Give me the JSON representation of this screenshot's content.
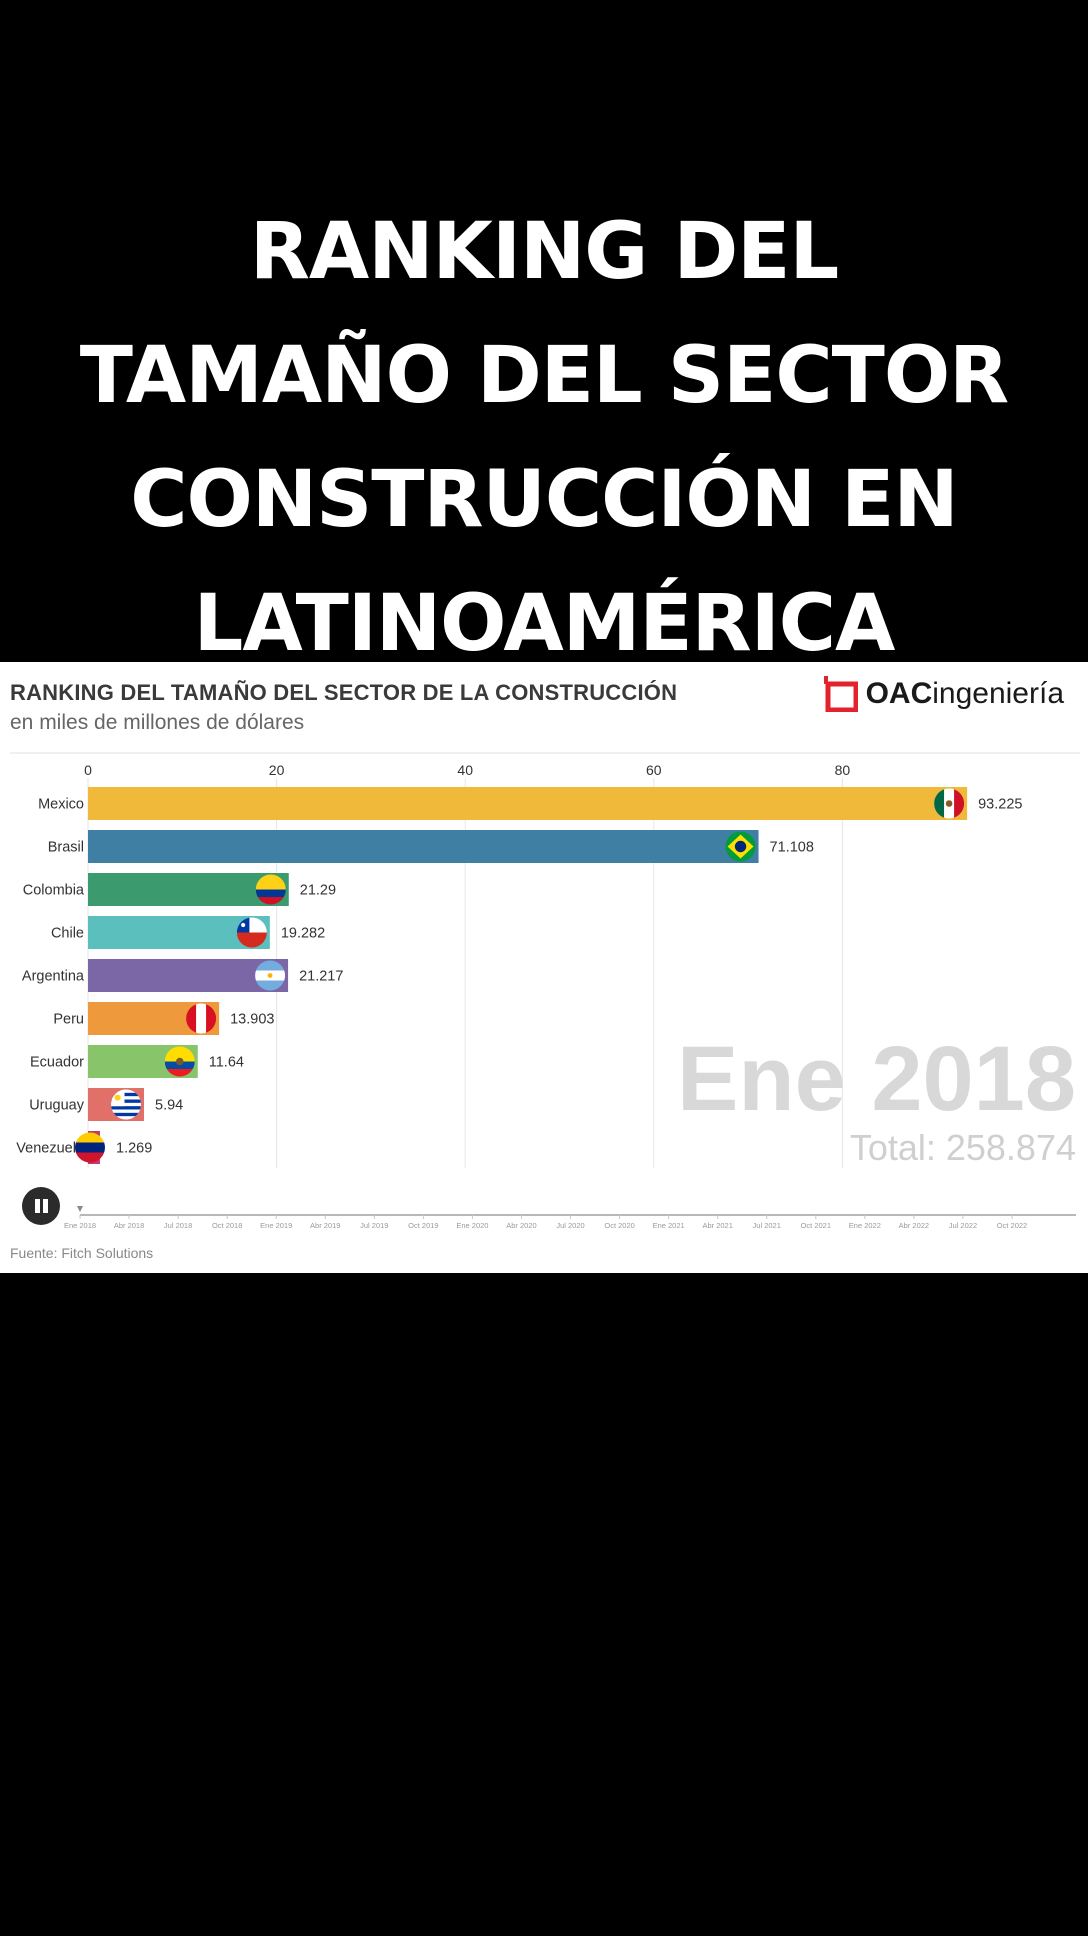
{
  "headline": {
    "lines": [
      "RANKING DEL",
      "TAMAÑO DEL SECTOR",
      "CONSTRUCCIÓN EN",
      "LATINOAMÉRICA"
    ]
  },
  "brand": {
    "name_bold": "OAC",
    "name_rest": "ingeniería",
    "color": "#e3222d"
  },
  "chart_data": {
    "type": "bar",
    "title": "RANKING DEL TAMAÑO DEL SECTOR DE LA CONSTRUCCIÓN",
    "subtitle": "en miles de millones de dólares",
    "x_ticks": [
      "0",
      "20",
      "40",
      "60",
      "80"
    ],
    "xlim": [
      0,
      100
    ],
    "grid": true,
    "categories": [
      "Mexico",
      "Brasil",
      "Colombia",
      "Chile",
      "Argentina",
      "Peru",
      "Ecuador",
      "Uruguay",
      "Venezuela"
    ],
    "values": [
      93.225,
      71.108,
      21.29,
      19.282,
      21.217,
      13.903,
      11.64,
      5.94,
      1.269
    ],
    "value_labels": [
      "93.225",
      "71.108",
      "21.29",
      "19.282",
      "21.217",
      "13.903",
      "11.64",
      "5.94",
      "1.269"
    ],
    "colors": [
      "#f0b93a",
      "#3f7fa3",
      "#3b9a6e",
      "#5bbfbd",
      "#7b66a6",
      "#ee9a3c",
      "#88c46a",
      "#e07068",
      "#c33b68"
    ],
    "flags": [
      "mexico",
      "brazil",
      "colombia",
      "chile",
      "argentina",
      "peru",
      "ecuador",
      "uruguay",
      "venezuela"
    ],
    "period_label": "Ene 2018",
    "total_label": "Total: 258.874",
    "timeline_ticks": [
      "Ene 2018",
      "Abr 2018",
      "Jul 2018",
      "Oct 2018",
      "Ene 2019",
      "Abr 2019",
      "Jul 2019",
      "Oct 2019",
      "Ene 2020",
      "Abr 2020",
      "Jul 2020",
      "Oct 2020",
      "Ene 2021",
      "Abr 2021",
      "Jul 2021",
      "Oct 2021",
      "Ene 2022",
      "Abr 2022",
      "Jul 2022",
      "Oct 2022"
    ],
    "source": "Fuente: Fitch Solutions"
  }
}
